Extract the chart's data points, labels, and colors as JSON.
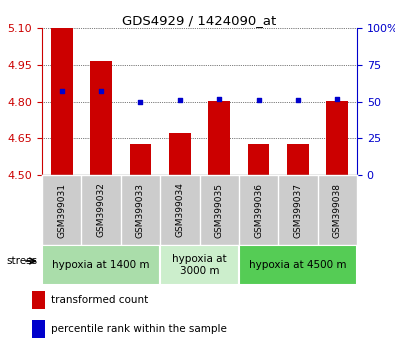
{
  "title": "GDS4929 / 1424090_at",
  "samples": [
    "GSM399031",
    "GSM399032",
    "GSM399033",
    "GSM399034",
    "GSM399035",
    "GSM399036",
    "GSM399037",
    "GSM399038"
  ],
  "transformed_count": [
    5.1,
    4.965,
    4.625,
    4.67,
    4.8,
    4.625,
    4.625,
    4.8
  ],
  "percentile_rank": [
    57,
    57,
    50,
    51,
    52,
    51,
    51,
    52
  ],
  "ylim_left": [
    4.5,
    5.1
  ],
  "ylim_right": [
    0,
    100
  ],
  "yticks_left": [
    4.5,
    4.65,
    4.8,
    4.95,
    5.1
  ],
  "yticks_right": [
    0,
    25,
    50,
    75,
    100
  ],
  "ytick_labels_right": [
    "0",
    "25",
    "50",
    "75",
    "100%"
  ],
  "bar_color": "#cc0000",
  "dot_color": "#0000cc",
  "left_tick_color": "#cc0000",
  "right_tick_color": "#0000cc",
  "groups": [
    {
      "label": "hypoxia at 1400 m",
      "start": 0,
      "end": 3,
      "color": "#aaddaa"
    },
    {
      "label": "hypoxia at\n3000 m",
      "start": 3,
      "end": 5,
      "color": "#cceecc"
    },
    {
      "label": "hypoxia at 4500 m",
      "start": 5,
      "end": 8,
      "color": "#55cc55"
    }
  ],
  "stress_label": "stress",
  "legend_items": [
    {
      "color": "#cc0000",
      "label": "transformed count"
    },
    {
      "color": "#0000cc",
      "label": "percentile rank within the sample"
    }
  ],
  "sample_bg_color": "#cccccc",
  "bg_color": "#ffffff"
}
